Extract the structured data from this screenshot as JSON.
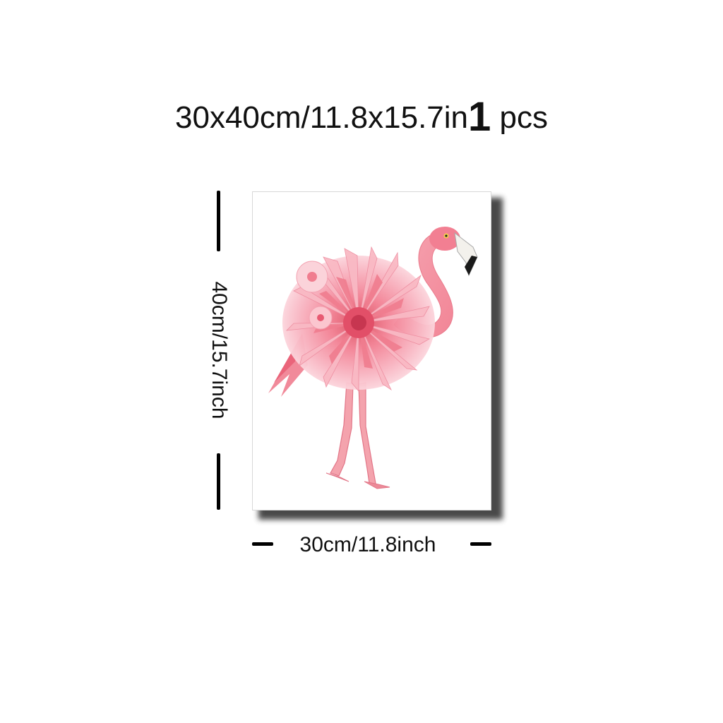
{
  "header": {
    "size_text": "30x40cm/11.8x15.7in",
    "quantity_number": "1",
    "quantity_unit": "pcs"
  },
  "dimensions": {
    "height_label": "40cm/15.7inch",
    "width_label": "30cm/11.8inch"
  },
  "product": {
    "image_subject": "flamingo-icon",
    "colors": {
      "flamingo_pink": "#f47a8a",
      "petal_light": "#f9b9c4",
      "petal_deep": "#e24f68",
      "beak_tip": "#1a1a1a",
      "canvas_shadow": "#2a2a2a"
    }
  }
}
